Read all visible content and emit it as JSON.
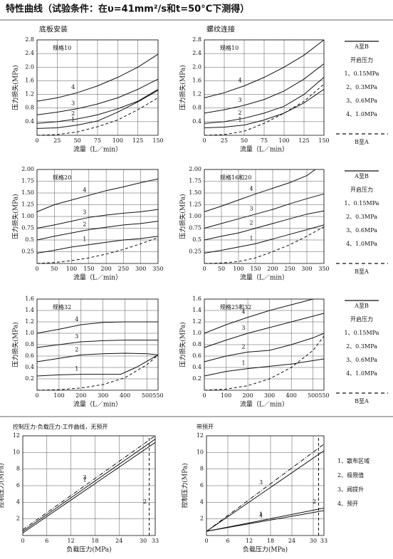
{
  "header": {
    "title": "特性曲线（试验条件：在υ=41mm²/s和t=50°C下测得）"
  },
  "column_titles": [
    "底板安装",
    "螺纹连接"
  ],
  "legends": [
    {
      "items": [
        "A至B",
        "开启压力",
        "1、0.15MPa",
        "2、0.3MPa",
        "3、0.6MPa",
        "4、1.0MPa",
        "B至A"
      ]
    },
    {
      "items": [
        "A至B",
        "开启压力",
        "1、0.15MPa",
        "2、0.3MPa",
        "3、0.6MPa",
        "4、1.0MPa",
        "B至A"
      ]
    },
    {
      "items": [
        "A至B",
        "开启压力",
        "1、0.15MPa",
        "2、0.3MPa",
        "3、0.6MPa",
        "4、1.0MPa",
        "B至A"
      ]
    }
  ],
  "bottom_legend": {
    "items": [
      "1、散布区域",
      "2、极限值",
      "3、阀提升",
      "4、预开"
    ]
  },
  "chart_data": [
    {
      "type": "line",
      "title": "规格10",
      "xlabel": "流量（L／min）",
      "ylabel": "压力损失(MPa)",
      "xlim": [
        0,
        150
      ],
      "ylim": [
        0,
        2.8
      ],
      "xticks": [
        0,
        25,
        50,
        75,
        100,
        125,
        150
      ],
      "yticks": [
        0.4,
        0.8,
        1.2,
        1.6,
        {
          "value": 2.0,
          "label": "2.0"
        },
        2.4,
        2.8
      ],
      "grid": true,
      "color": "#111",
      "series": [
        {
          "label": "4",
          "x": [
            0,
            25,
            50,
            75,
            100,
            125,
            150
          ],
          "values": [
            1.0,
            1.1,
            1.25,
            1.45,
            1.7,
            2.0,
            2.38
          ]
        },
        {
          "label": "3",
          "x": [
            0,
            25,
            50,
            75,
            100,
            125,
            150
          ],
          "values": [
            0.6,
            0.68,
            0.78,
            0.92,
            1.1,
            1.35,
            1.65
          ]
        },
        {
          "label": "2",
          "x": [
            0,
            25,
            50,
            75,
            100,
            125,
            150
          ],
          "values": [
            0.35,
            0.4,
            0.48,
            0.6,
            0.78,
            1.0,
            1.35
          ]
        },
        {
          "label": "1",
          "x": [
            0,
            25,
            50,
            75,
            100,
            125,
            150
          ],
          "values": [
            0.2,
            0.22,
            0.3,
            0.42,
            0.68,
            0.98,
            1.32
          ]
        },
        {
          "dash": "dashed",
          "x": [
            0,
            25,
            50,
            75,
            100,
            125,
            150
          ],
          "values": [
            0,
            0.02,
            0.1,
            0.25,
            0.45,
            0.75,
            1.1
          ]
        }
      ]
    },
    {
      "type": "line",
      "title": "规格10",
      "xlabel": "流量（L／min）",
      "ylabel": "压力损失(MPa)",
      "xlim": [
        0,
        150
      ],
      "ylim": [
        0,
        2.8
      ],
      "xticks": [
        0,
        25,
        50,
        75,
        100,
        125,
        150
      ],
      "yticks": [
        0.4,
        0.8,
        1.2,
        1.6,
        {
          "value": 2.0,
          "label": "2.0"
        },
        2.4,
        2.8
      ],
      "grid": true,
      "color": "#111",
      "series": [
        {
          "label": "4",
          "x": [
            0,
            25,
            50,
            75,
            100,
            125,
            150
          ],
          "values": [
            1.1,
            1.25,
            1.45,
            1.7,
            2.0,
            2.35,
            2.8
          ]
        },
        {
          "label": "3",
          "x": [
            0,
            25,
            50,
            75,
            100,
            125,
            150
          ],
          "values": [
            0.65,
            0.75,
            0.88,
            1.05,
            1.3,
            1.65,
            2.1
          ]
        },
        {
          "label": "2",
          "x": [
            0,
            25,
            50,
            75,
            100,
            125,
            150
          ],
          "values": [
            0.35,
            0.4,
            0.5,
            0.65,
            0.85,
            1.2,
            1.7
          ]
        },
        {
          "label": "1",
          "x": [
            0,
            25,
            50,
            75,
            100,
            125,
            150
          ],
          "values": [
            0.22,
            0.24,
            0.3,
            0.45,
            0.65,
            0.95,
            1.35
          ]
        },
        {
          "dash": "dashed",
          "x": [
            0,
            25,
            50,
            75,
            100,
            125,
            150
          ],
          "values": [
            0,
            0.02,
            0.12,
            0.35,
            0.65,
            1.0,
            1.5
          ]
        }
      ]
    },
    {
      "type": "line",
      "title": "规格20",
      "xlabel": "流量（L／min）",
      "ylabel": "压力损失(MPa)",
      "xlim": [
        0,
        350
      ],
      "ylim": [
        0,
        2.0
      ],
      "xticks": [
        0,
        50,
        100,
        150,
        200,
        250,
        300,
        350
      ],
      "yticks": [
        {
          "value": 0.25,
          "label": "0.25"
        },
        {
          "value": 0.5,
          "label": "0.5"
        },
        {
          "value": 0.75,
          "label": "0.75"
        },
        {
          "value": 1.0,
          "label": "1.00"
        },
        {
          "value": 1.25,
          "label": "1.25"
        },
        {
          "value": 1.5,
          "label": "1.50"
        },
        {
          "value": 1.75,
          "label": "1.75"
        },
        {
          "value": 2.0,
          "label": "2.00"
        }
      ],
      "grid": true,
      "color": "#111",
      "series": [
        {
          "label": "4",
          "x": [
            0,
            50,
            100,
            150,
            200,
            250,
            300,
            350
          ],
          "values": [
            1.1,
            1.25,
            1.35,
            1.45,
            1.55,
            1.63,
            1.72,
            1.8
          ]
        },
        {
          "label": "3",
          "x": [
            0,
            50,
            100,
            150,
            200,
            250,
            300,
            350
          ],
          "values": [
            0.75,
            0.82,
            0.9,
            0.98,
            1.03,
            1.07,
            1.1,
            1.15
          ]
        },
        {
          "label": "2",
          "x": [
            0,
            50,
            100,
            150,
            200,
            250,
            300,
            350
          ],
          "values": [
            0.5,
            0.58,
            0.65,
            0.72,
            0.77,
            0.82,
            0.85,
            0.9
          ]
        },
        {
          "label": "1",
          "x": [
            0,
            50,
            100,
            150,
            200,
            250,
            300,
            350
          ],
          "values": [
            0.22,
            0.28,
            0.35,
            0.4,
            0.45,
            0.5,
            0.53,
            0.58
          ]
        },
        {
          "dash": "dashed",
          "x": [
            0,
            50,
            100,
            150,
            200,
            250,
            300,
            350
          ],
          "values": [
            0,
            0.02,
            0.06,
            0.12,
            0.2,
            0.3,
            0.42,
            0.55
          ]
        }
      ]
    },
    {
      "type": "line",
      "title": "规格16和20",
      "xlabel": "流量（L／min）",
      "ylabel": "压力损失(MPa)",
      "xlim": [
        0,
        350
      ],
      "ylim": [
        0,
        2.0
      ],
      "xticks": [
        0,
        50,
        100,
        150,
        200,
        250,
        300,
        350
      ],
      "yticks": [
        {
          "value": 0.25,
          "label": "0.25"
        },
        {
          "value": 0.5,
          "label": "0.5"
        },
        {
          "value": 0.75,
          "label": "0.75"
        },
        {
          "value": 1.0,
          "label": "1.00"
        },
        {
          "value": 1.25,
          "label": "1.25"
        },
        {
          "value": 1.5,
          "label": "1.50"
        },
        {
          "value": 1.75,
          "label": "1.75"
        },
        {
          "value": 2.0,
          "label": "2.00"
        }
      ],
      "grid": true,
      "color": "#111",
      "series": [
        {
          "label": "4",
          "x": [
            0,
            50,
            100,
            150,
            200,
            250,
            300,
            325
          ],
          "values": [
            1.1,
            1.22,
            1.35,
            1.48,
            1.6,
            1.72,
            1.87,
            2.0
          ]
        },
        {
          "label": "3",
          "x": [
            0,
            50,
            100,
            150,
            200,
            250,
            300,
            350
          ],
          "values": [
            0.75,
            0.85,
            0.95,
            1.05,
            1.15,
            1.27,
            1.38,
            1.48
          ]
        },
        {
          "label": "2",
          "x": [
            0,
            50,
            100,
            150,
            200,
            250,
            300,
            350
          ],
          "values": [
            0.5,
            0.58,
            0.65,
            0.75,
            0.85,
            0.95,
            1.05,
            1.12
          ]
        },
        {
          "label": "1",
          "x": [
            0,
            50,
            100,
            150,
            200,
            250,
            300,
            350
          ],
          "values": [
            0.22,
            0.28,
            0.35,
            0.42,
            0.52,
            0.62,
            0.72,
            0.82
          ]
        },
        {
          "dash": "dashed",
          "x": [
            0,
            50,
            100,
            150,
            200,
            250,
            300,
            350
          ],
          "values": [
            0,
            0.01,
            0.04,
            0.12,
            0.25,
            0.4,
            0.58,
            0.78
          ]
        }
      ]
    },
    {
      "type": "line",
      "title": "规格32",
      "xlabel": "流量（L／min）",
      "ylabel": "压力损失(MPa)",
      "xlim": [
        0,
        550
      ],
      "ylim": [
        0,
        1.6
      ],
      "xticks": [
        0,
        100,
        200,
        300,
        400,
        500,
        550
      ],
      "yticks": [
        0.2,
        0.4,
        0.6,
        0.8,
        {
          "value": 1.0,
          "label": "1.0"
        },
        1.2,
        1.4,
        1.6
      ],
      "grid": true,
      "color": "#111",
      "series": [
        {
          "label": "4",
          "x": [
            0,
            100,
            200,
            300,
            400,
            500,
            550
          ],
          "values": [
            1.0,
            1.07,
            1.15,
            1.19,
            1.2,
            1.2,
            1.2
          ]
        },
        {
          "label": "3",
          "x": [
            0,
            100,
            200,
            300,
            400,
            500,
            550
          ],
          "values": [
            0.75,
            0.8,
            0.85,
            0.87,
            0.88,
            0.88,
            0.88
          ]
        },
        {
          "label": "2",
          "x": [
            0,
            100,
            200,
            300,
            400,
            500,
            550
          ],
          "values": [
            0.5,
            0.56,
            0.62,
            0.64,
            0.65,
            0.64,
            0.62
          ]
        },
        {
          "label": "1",
          "x": [
            0,
            100,
            200,
            300,
            380,
            450,
            550
          ],
          "values": [
            0.25,
            0.27,
            0.28,
            0.28,
            0.28,
            0.4,
            0.62
          ]
        },
        {
          "dash": "dashed",
          "x": [
            0,
            100,
            200,
            300,
            400,
            500,
            550
          ],
          "values": [
            0,
            0.01,
            0.04,
            0.1,
            0.22,
            0.45,
            0.62
          ]
        }
      ]
    },
    {
      "type": "line",
      "title": "规格25和32",
      "xlabel": "流量（L／min）",
      "ylabel": "压力损失(MPa)",
      "xlim": [
        0,
        550
      ],
      "ylim": [
        0,
        1.6
      ],
      "xticks": [
        0,
        100,
        200,
        300,
        400,
        500,
        550
      ],
      "yticks": [
        0.2,
        0.4,
        0.6,
        0.8,
        {
          "value": 1.0,
          "label": "1.0"
        },
        1.2,
        1.4,
        1.6
      ],
      "grid": true,
      "color": "#111",
      "series": [
        {
          "label": "4",
          "x": [
            0,
            100,
            200,
            300,
            400,
            500
          ],
          "values": [
            1.0,
            1.15,
            1.28,
            1.4,
            1.5,
            1.6
          ]
        },
        {
          "label": "3",
          "x": [
            0,
            100,
            200,
            300,
            400,
            500,
            550
          ],
          "values": [
            0.75,
            0.88,
            1.0,
            1.1,
            1.2,
            1.3,
            1.35
          ]
        },
        {
          "label": "2",
          "x": [
            0,
            100,
            200,
            300,
            400,
            500,
            550
          ],
          "values": [
            0.5,
            0.6,
            0.67,
            0.7,
            0.8,
            0.92,
            1.0
          ]
        },
        {
          "label": "1",
          "x": [
            0,
            100,
            200,
            300,
            400,
            500,
            550
          ],
          "values": [
            0.25,
            0.33,
            0.38,
            0.42,
            0.46,
            0.52,
            0.55
          ]
        },
        {
          "dash": "dashed",
          "x": [
            0,
            100,
            200,
            300,
            400,
            500,
            550
          ],
          "values": [
            0,
            0.02,
            0.08,
            0.2,
            0.4,
            0.7,
            0.95
          ]
        }
      ]
    },
    {
      "type": "line",
      "title": "控制压力-负载压力-工作曲线，无预开",
      "xlabel": "负载压力(MPa)",
      "ylabel": "控制压力(MPa)",
      "xlim": [
        0,
        33
      ],
      "ylim": [
        0,
        12
      ],
      "xticks": [
        0,
        6,
        12,
        18,
        24,
        30,
        33
      ],
      "yticks": [
        2,
        4,
        6,
        8,
        10,
        12
      ],
      "grid": true,
      "color": "#111",
      "series": [
        {
          "label": "3",
          "dash": "dashdot",
          "x": [
            0,
            33
          ],
          "values": [
            0.7,
            12
          ]
        },
        {
          "label": "1",
          "x": [
            0,
            33
          ],
          "values": [
            0.5,
            11.6
          ]
        },
        {
          "x": [
            0,
            33
          ],
          "values": [
            0.3,
            11.2
          ]
        },
        {
          "label": "2",
          "dash": "dashed",
          "x": [
            31.5,
            31.5
          ],
          "values": [
            0,
            12
          ]
        }
      ]
    },
    {
      "type": "line",
      "title": "带预开",
      "xlabel": "负载压力(MPa)",
      "ylabel": "控制压力(MPa)",
      "xlim": [
        0,
        33
      ],
      "ylim": [
        0,
        12
      ],
      "xticks": [
        0,
        6,
        12,
        18,
        24,
        30,
        33
      ],
      "yticks": [
        2,
        4,
        6,
        8,
        10,
        12
      ],
      "grid": true,
      "color": "#111",
      "series": [
        {
          "label": "3",
          "dash": "dashdot",
          "x": [
            0,
            33
          ],
          "values": [
            0.5,
            11
          ]
        },
        {
          "x": [
            0,
            33
          ],
          "values": [
            0.5,
            10.2
          ]
        },
        {
          "label": "1",
          "x": [
            0,
            33
          ],
          "values": [
            0.5,
            3.3
          ]
        },
        {
          "label": "4",
          "x": [
            0,
            33
          ],
          "values": [
            0.5,
            3.0
          ]
        },
        {
          "label": "2",
          "dash": "dashed",
          "x": [
            31.5,
            31.5
          ],
          "values": [
            0,
            12
          ]
        }
      ]
    }
  ]
}
